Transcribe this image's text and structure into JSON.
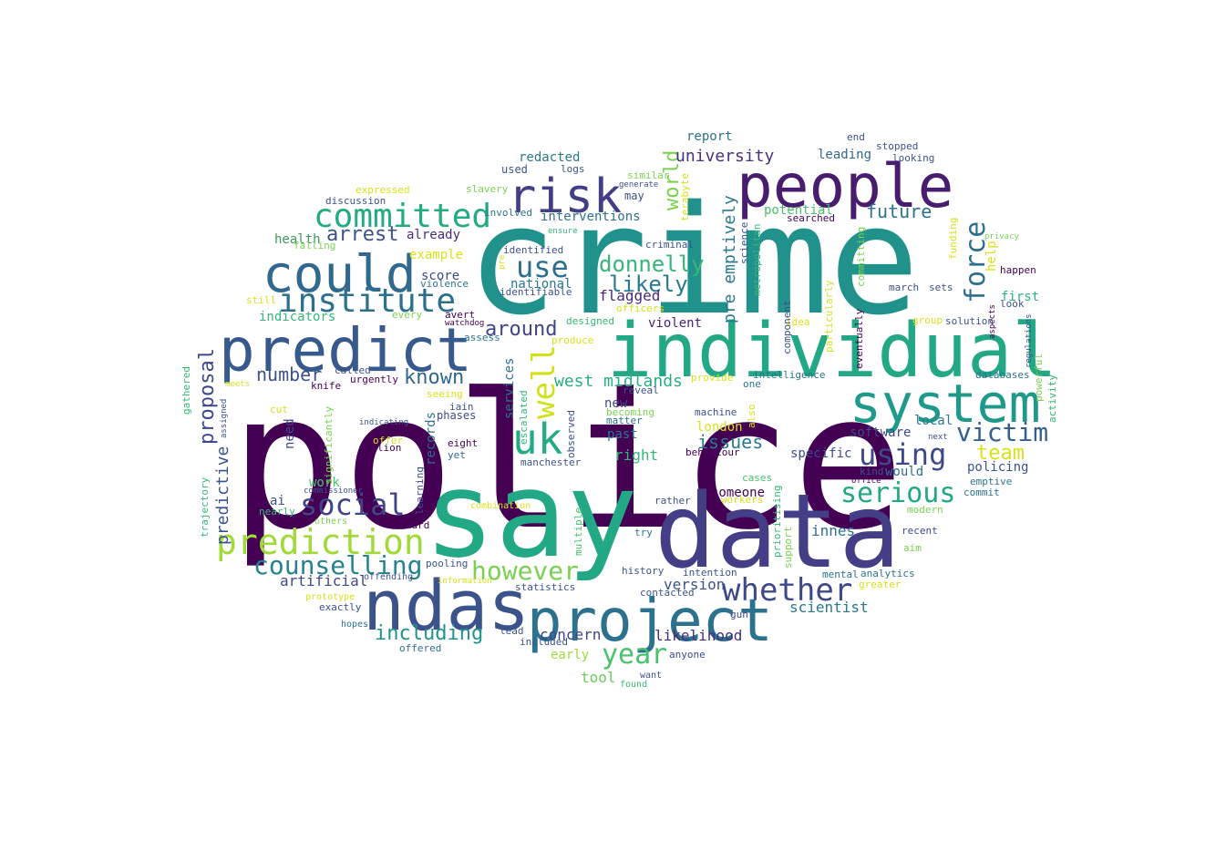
{
  "wordcloud": {
    "words": [
      {
        "text": "police",
        "color": "#440154"
      },
      {
        "text": "crime",
        "color": "#21918c"
      },
      {
        "text": "say",
        "color": "#22a884"
      },
      {
        "text": "data",
        "color": "#433e85"
      },
      {
        "text": "individual",
        "color": "#22a884"
      },
      {
        "text": "people",
        "color": "#481c6e"
      },
      {
        "text": "predict",
        "color": "#38598c"
      },
      {
        "text": "ndas",
        "color": "#3b528b"
      },
      {
        "text": "project",
        "color": "#2c728e"
      },
      {
        "text": "system",
        "color": "#1f9a8a"
      },
      {
        "text": "could",
        "color": "#31688e"
      },
      {
        "text": "risk",
        "color": "#433e85"
      },
      {
        "text": "institute",
        "color": "#2d708e"
      },
      {
        "text": "committed",
        "color": "#25ab82"
      },
      {
        "text": "prediction",
        "color": "#a0da39"
      },
      {
        "text": "whether",
        "color": "#3e4989"
      },
      {
        "text": "uk",
        "color": "#25ab82"
      },
      {
        "text": "well",
        "color": "#d0e11c"
      },
      {
        "text": "social",
        "color": "#414487"
      },
      {
        "text": "serious",
        "color": "#22a884"
      },
      {
        "text": "using",
        "color": "#3e4989"
      },
      {
        "text": "counselling",
        "color": "#26828e"
      },
      {
        "text": "year",
        "color": "#4ac16d"
      },
      {
        "text": "however",
        "color": "#7ad151"
      },
      {
        "text": "force",
        "color": "#2e6e8e"
      },
      {
        "text": "victim",
        "color": "#355f8d"
      },
      {
        "text": "use",
        "color": "#2d708e"
      },
      {
        "text": "donnelly",
        "color": "#35b779"
      },
      {
        "text": "including",
        "color": "#20928c"
      },
      {
        "text": "likely",
        "color": "#2a788e"
      },
      {
        "text": "world",
        "color": "#7ad151"
      },
      {
        "text": "around",
        "color": "#414487"
      },
      {
        "text": "team",
        "color": "#d8e219"
      },
      {
        "text": "known",
        "color": "#31688e"
      },
      {
        "text": "arrest",
        "color": "#3b528b"
      },
      {
        "text": "future",
        "color": "#2c728e"
      },
      {
        "text": "issues",
        "color": "#2a788e"
      },
      {
        "text": "number",
        "color": "#3b528b"
      },
      {
        "text": "proposal",
        "color": "#3e4989"
      },
      {
        "text": "university",
        "color": "#46327e"
      },
      {
        "text": "west midlands",
        "color": "#2ab07f"
      },
      {
        "text": "pre emptively",
        "color": "#2a788e"
      },
      {
        "text": "predictive",
        "color": "#3b528b"
      },
      {
        "text": "tool",
        "color": "#6ccd5a"
      },
      {
        "text": "artificial",
        "color": "#3e4989"
      },
      {
        "text": "version",
        "color": "#3b528b"
      },
      {
        "text": "scientist",
        "color": "#2a788e"
      },
      {
        "text": "likelihood",
        "color": "#472d7b"
      },
      {
        "text": "concern",
        "color": "#404688"
      },
      {
        "text": "innes",
        "color": "#2d708e"
      },
      {
        "text": "someone",
        "color": "#440154"
      },
      {
        "text": "policing",
        "color": "#3b528b"
      },
      {
        "text": "software",
        "color": "#3e4989"
      },
      {
        "text": "specific",
        "color": "#3e4989"
      },
      {
        "text": "right",
        "color": "#35b779"
      },
      {
        "text": "past",
        "color": "#2a788e"
      },
      {
        "text": "london",
        "color": "#d8e219"
      },
      {
        "text": "violent",
        "color": "#482475"
      },
      {
        "text": "flagged",
        "color": "#482878"
      },
      {
        "text": "interventions",
        "color": "#2d708e"
      },
      {
        "text": "redacted",
        "color": "#2a788e"
      },
      {
        "text": "report",
        "color": "#2c728e"
      },
      {
        "text": "leading",
        "color": "#31688e"
      },
      {
        "text": "potential",
        "color": "#4ac16d"
      },
      {
        "text": "help",
        "color": "#d8e219"
      },
      {
        "text": "first",
        "color": "#2ab07f"
      },
      {
        "text": "local",
        "color": "#2a788e"
      },
      {
        "text": "would",
        "color": "#2d708e"
      },
      {
        "text": "health",
        "color": "#3b9a5f"
      },
      {
        "text": "indicators",
        "color": "#35b779"
      },
      {
        "text": "already",
        "color": "#472d7b"
      },
      {
        "text": "example",
        "color": "#d8e219"
      },
      {
        "text": "score",
        "color": "#3e4989"
      },
      {
        "text": "national",
        "color": "#2a788e"
      },
      {
        "text": "records",
        "color": "#2c728e"
      },
      {
        "text": "services",
        "color": "#2c728e"
      },
      {
        "text": "need",
        "color": "#3e4989"
      },
      {
        "text": "ai",
        "color": "#3b528b"
      },
      {
        "text": "work",
        "color": "#4ac16d"
      },
      {
        "text": "new",
        "color": "#3e4989"
      },
      {
        "text": "used",
        "color": "#3b528b"
      },
      {
        "text": "may",
        "color": "#3b528b"
      },
      {
        "text": "phases",
        "color": "#3e4989"
      },
      {
        "text": "eight",
        "color": "#440154"
      },
      {
        "text": "yet",
        "color": "#31688e"
      },
      {
        "text": "million",
        "color": "#440154"
      },
      {
        "text": "avert",
        "color": "#440154"
      },
      {
        "text": "iain",
        "color": "#3b528b"
      },
      {
        "text": "richard",
        "color": "#440154"
      },
      {
        "text": "pooling",
        "color": "#3b528b"
      },
      {
        "text": "statistics",
        "color": "#3b528b"
      },
      {
        "text": "history",
        "color": "#3b528b"
      },
      {
        "text": "intention",
        "color": "#3b528b"
      },
      {
        "text": "machine",
        "color": "#3b528b"
      },
      {
        "text": "behaviour",
        "color": "#440154"
      },
      {
        "text": "cases",
        "color": "#4ac16d"
      },
      {
        "text": "emptive",
        "color": "#2c728e"
      },
      {
        "text": "commit",
        "color": "#2c728e"
      },
      {
        "text": "recent",
        "color": "#3e4989"
      },
      {
        "text": "aim",
        "color": "#7ad151"
      },
      {
        "text": "analytics",
        "color": "#2c728e"
      },
      {
        "text": "mental",
        "color": "#2c728e"
      },
      {
        "text": "greater",
        "color": "#d8e219"
      },
      {
        "text": "gun",
        "color": "#3e4989"
      },
      {
        "text": "anyone",
        "color": "#3e4989"
      },
      {
        "text": "want",
        "color": "#3b528b"
      },
      {
        "text": "found",
        "color": "#35b779"
      },
      {
        "text": "early",
        "color": "#a0da39"
      },
      {
        "text": "included",
        "color": "#3b528b"
      },
      {
        "text": "lead",
        "color": "#3b528b"
      },
      {
        "text": "offered",
        "color": "#2c728e"
      },
      {
        "text": "hopes",
        "color": "#2c728e"
      },
      {
        "text": "exactly",
        "color": "#3b528b"
      },
      {
        "text": "prototype",
        "color": "#d8e219"
      },
      {
        "text": "offending",
        "color": "#3b528b"
      },
      {
        "text": "information",
        "color": "#d8e219"
      },
      {
        "text": "multiple",
        "color": "#4ac16d"
      },
      {
        "text": "try",
        "color": "#2c728e"
      },
      {
        "text": "rather",
        "color": "#3b528b"
      },
      {
        "text": "combination",
        "color": "#d8e219"
      },
      {
        "text": "contacted",
        "color": "#3b528b"
      },
      {
        "text": "others",
        "color": "#7ad151"
      },
      {
        "text": "nearly",
        "color": "#35b779"
      },
      {
        "text": "commissioner",
        "color": "#3b528b"
      },
      {
        "text": "learning",
        "color": "#3b528b"
      },
      {
        "text": "trajectory",
        "color": "#35b779"
      },
      {
        "text": "significantly",
        "color": "#7ad151"
      },
      {
        "text": "indicating",
        "color": "#3b528b"
      },
      {
        "text": "offer",
        "color": "#d8e219"
      },
      {
        "text": "cut",
        "color": "#d8e219"
      },
      {
        "text": "assigned",
        "color": "#3b528b"
      },
      {
        "text": "gathered",
        "color": "#35b779"
      },
      {
        "text": "meets",
        "color": "#d8e219"
      },
      {
        "text": "knife",
        "color": "#440154"
      },
      {
        "text": "called",
        "color": "#3b528b"
      },
      {
        "text": "urgently",
        "color": "#440154"
      },
      {
        "text": "seeing",
        "color": "#d8e219"
      },
      {
        "text": "escalated",
        "color": "#35b779"
      },
      {
        "text": "observed",
        "color": "#3b528b"
      },
      {
        "text": "matter",
        "color": "#2c728e"
      },
      {
        "text": "becoming",
        "color": "#7ad151"
      },
      {
        "text": "reveal",
        "color": "#3b528b"
      },
      {
        "text": "provide",
        "color": "#d8e219"
      },
      {
        "text": "one",
        "color": "#2c728e"
      },
      {
        "text": "intelligence",
        "color": "#2c728e"
      },
      {
        "text": "also",
        "color": "#d8e219"
      },
      {
        "text": "prioritising",
        "color": "#35b779"
      },
      {
        "text": "support",
        "color": "#7ad151"
      },
      {
        "text": "workers",
        "color": "#d8e219"
      },
      {
        "text": "kind",
        "color": "#3b528b"
      },
      {
        "text": "office",
        "color": "#440154"
      },
      {
        "text": "next",
        "color": "#3b528b"
      },
      {
        "text": "databases",
        "color": "#2c728e"
      },
      {
        "text": "powerful",
        "color": "#7ad151"
      },
      {
        "text": "activity",
        "color": "#35b779"
      },
      {
        "text": "modern",
        "color": "#7ad151"
      },
      {
        "text": "regulations",
        "color": "#3b528b"
      },
      {
        "text": "aspects",
        "color": "#440154"
      },
      {
        "text": "solution",
        "color": "#3b528b"
      },
      {
        "text": "group",
        "color": "#d8e219"
      },
      {
        "text": "look",
        "color": "#3b528b"
      },
      {
        "text": "happen",
        "color": "#440154"
      },
      {
        "text": "march",
        "color": "#3b528b"
      },
      {
        "text": "sets",
        "color": "#3b528b"
      },
      {
        "text": "privacy",
        "color": "#7ad151"
      },
      {
        "text": "funding",
        "color": "#d8e219"
      },
      {
        "text": "committing",
        "color": "#7ad151"
      },
      {
        "text": "eventually",
        "color": "#440154"
      },
      {
        "text": "particularly",
        "color": "#d8e219"
      },
      {
        "text": "idea",
        "color": "#d8e219"
      },
      {
        "text": "component",
        "color": "#3b528b"
      },
      {
        "text": "metropolitan",
        "color": "#35b779"
      },
      {
        "text": "science",
        "color": "#3b528b"
      },
      {
        "text": "searched",
        "color": "#440154"
      },
      {
        "text": "criminal",
        "color": "#3b528b"
      },
      {
        "text": "terabyte",
        "color": "#d8e219"
      },
      {
        "text": "generate",
        "color": "#3b528b"
      },
      {
        "text": "similar",
        "color": "#7ad151"
      },
      {
        "text": "logs",
        "color": "#3b528b"
      },
      {
        "text": "end",
        "color": "#3b528b"
      },
      {
        "text": "stopped",
        "color": "#3b528b"
      },
      {
        "text": "looking",
        "color": "#3b528b"
      },
      {
        "text": "expressed",
        "color": "#d8e219"
      },
      {
        "text": "slavery",
        "color": "#7ad151"
      },
      {
        "text": "discussion",
        "color": "#3b528b"
      },
      {
        "text": "involved",
        "color": "#2c728e"
      },
      {
        "text": "ensure",
        "color": "#35b779"
      },
      {
        "text": "falling",
        "color": "#7ad151"
      },
      {
        "text": "identified",
        "color": "#3b528b"
      },
      {
        "text": "pre",
        "color": "#d8e219"
      },
      {
        "text": "violence",
        "color": "#2c728e"
      },
      {
        "text": "identifiable",
        "color": "#3b528b"
      },
      {
        "text": "still",
        "color": "#d8e219"
      },
      {
        "text": "every",
        "color": "#7ad151"
      },
      {
        "text": "watchdog",
        "color": "#440154"
      },
      {
        "text": "officers",
        "color": "#d8e219"
      },
      {
        "text": "designed",
        "color": "#35b779"
      },
      {
        "text": "assess",
        "color": "#2c728e"
      },
      {
        "text": "produce",
        "color": "#d8e219"
      },
      {
        "text": "manchester",
        "color": "#3b528b"
      }
    ]
  }
}
